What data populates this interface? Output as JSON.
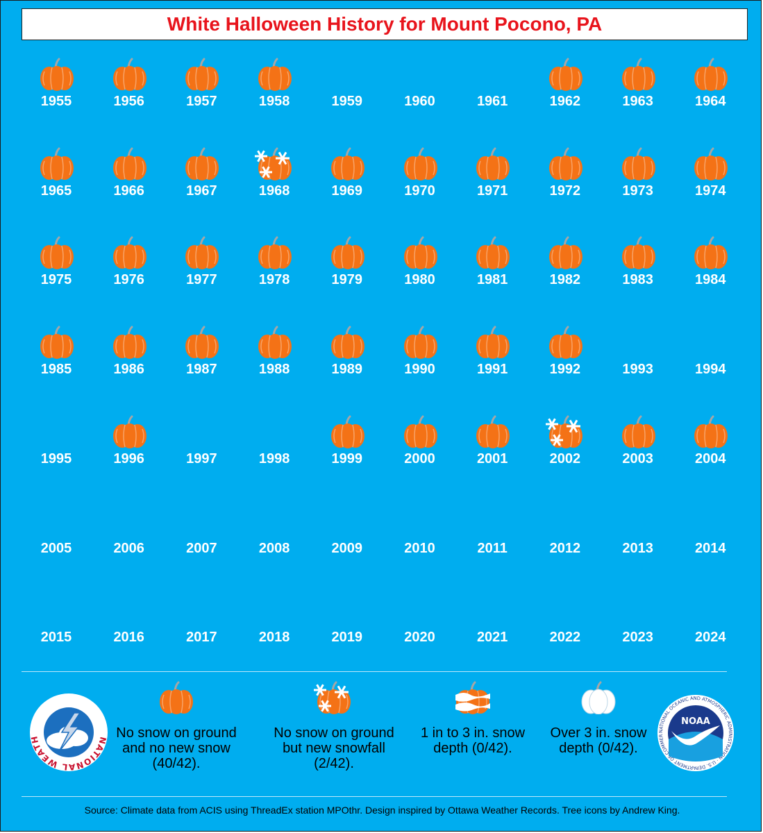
{
  "title": "White Halloween History for Mount Pocono, PA",
  "colors": {
    "background": "#00adef",
    "title": "#e8141c",
    "pumpkin": "#f47216",
    "stem": "#a6a6a6"
  },
  "years": [
    {
      "year": "1955",
      "status": "none"
    },
    {
      "year": "1956",
      "status": "none"
    },
    {
      "year": "1957",
      "status": "none"
    },
    {
      "year": "1958",
      "status": "none"
    },
    {
      "year": "1959",
      "status": ""
    },
    {
      "year": "1960",
      "status": ""
    },
    {
      "year": "1961",
      "status": ""
    },
    {
      "year": "1962",
      "status": "none"
    },
    {
      "year": "1963",
      "status": "none"
    },
    {
      "year": "1964",
      "status": "none"
    },
    {
      "year": "1965",
      "status": "none"
    },
    {
      "year": "1966",
      "status": "none"
    },
    {
      "year": "1967",
      "status": "none"
    },
    {
      "year": "1968",
      "status": "snowfall"
    },
    {
      "year": "1969",
      "status": "none"
    },
    {
      "year": "1970",
      "status": "none"
    },
    {
      "year": "1971",
      "status": "none"
    },
    {
      "year": "1972",
      "status": "none"
    },
    {
      "year": "1973",
      "status": "none"
    },
    {
      "year": "1974",
      "status": "none"
    },
    {
      "year": "1975",
      "status": "none"
    },
    {
      "year": "1976",
      "status": "none"
    },
    {
      "year": "1977",
      "status": "none"
    },
    {
      "year": "1978",
      "status": "none"
    },
    {
      "year": "1979",
      "status": "none"
    },
    {
      "year": "1980",
      "status": "none"
    },
    {
      "year": "1981",
      "status": "none"
    },
    {
      "year": "1982",
      "status": "none"
    },
    {
      "year": "1983",
      "status": "none"
    },
    {
      "year": "1984",
      "status": "none"
    },
    {
      "year": "1985",
      "status": "none"
    },
    {
      "year": "1986",
      "status": "none"
    },
    {
      "year": "1987",
      "status": "none"
    },
    {
      "year": "1988",
      "status": "none"
    },
    {
      "year": "1989",
      "status": "none"
    },
    {
      "year": "1990",
      "status": "none"
    },
    {
      "year": "1991",
      "status": "none"
    },
    {
      "year": "1992",
      "status": "none"
    },
    {
      "year": "1993",
      "status": ""
    },
    {
      "year": "1994",
      "status": ""
    },
    {
      "year": "1995",
      "status": ""
    },
    {
      "year": "1996",
      "status": "none"
    },
    {
      "year": "1997",
      "status": ""
    },
    {
      "year": "1998",
      "status": ""
    },
    {
      "year": "1999",
      "status": "none"
    },
    {
      "year": "2000",
      "status": "none"
    },
    {
      "year": "2001",
      "status": "none"
    },
    {
      "year": "2002",
      "status": "snowfall"
    },
    {
      "year": "2003",
      "status": "none"
    },
    {
      "year": "2004",
      "status": "none"
    },
    {
      "year": "2005",
      "status": ""
    },
    {
      "year": "2006",
      "status": ""
    },
    {
      "year": "2007",
      "status": ""
    },
    {
      "year": "2008",
      "status": ""
    },
    {
      "year": "2009",
      "status": ""
    },
    {
      "year": "2010",
      "status": ""
    },
    {
      "year": "2011",
      "status": ""
    },
    {
      "year": "2012",
      "status": ""
    },
    {
      "year": "2013",
      "status": ""
    },
    {
      "year": "2014",
      "status": ""
    },
    {
      "year": "2015",
      "status": ""
    },
    {
      "year": "2016",
      "status": ""
    },
    {
      "year": "2017",
      "status": ""
    },
    {
      "year": "2018",
      "status": ""
    },
    {
      "year": "2019",
      "status": ""
    },
    {
      "year": "2020",
      "status": ""
    },
    {
      "year": "2021",
      "status": ""
    },
    {
      "year": "2022",
      "status": ""
    },
    {
      "year": "2023",
      "status": ""
    },
    {
      "year": "2024",
      "status": ""
    }
  ],
  "legend": [
    {
      "type": "none",
      "label": "No snow on ground and no new snow (40/42)."
    },
    {
      "type": "snowfall",
      "label": "No snow on ground but new snowfall (2/42)."
    },
    {
      "type": "depth1to3",
      "label": "1 in to 3 in. snow depth (0/42)."
    },
    {
      "type": "depth3plus",
      "label": "Over 3 in. snow depth (0/42)."
    }
  ],
  "logos": {
    "nws_text": "NATIONAL WEATHER SERVICE",
    "noaa_text": "NOAA",
    "noaa_ring_text": "NATIONAL OCEANIC AND ATMOSPHERIC ADMINISTRATION · U.S. DEPARTMENT OF COMMERCE"
  },
  "source": "Source: Climate data from ACIS using ThreadEx station MPOthr. Design inspired by Ottawa Weather Records. Tree icons by Andrew King."
}
